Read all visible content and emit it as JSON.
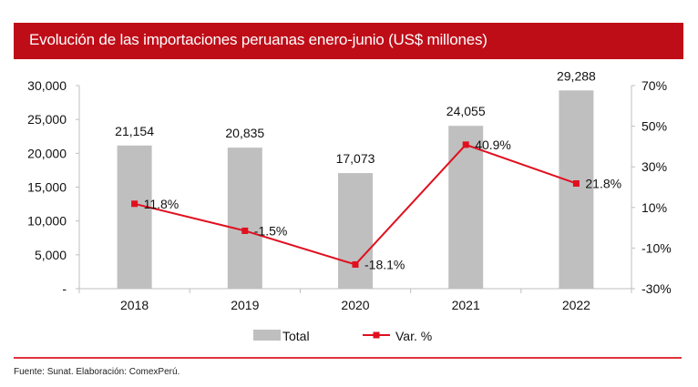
{
  "header": {
    "title": "Evolución de las importaciones peruanas enero-junio (US$ millones)"
  },
  "footer": {
    "source": "Fuente: Sunat. Elaboración: ComexPerú."
  },
  "chart_data": {
    "type": "bar+line",
    "title": "Evolución de las importaciones peruanas enero-junio (US$ millones)",
    "categories": [
      "2018",
      "2019",
      "2020",
      "2021",
      "2022"
    ],
    "series": [
      {
        "name": "Total",
        "type": "bar",
        "axis": "left",
        "values": [
          21154,
          20835,
          17073,
          24055,
          29288
        ],
        "labels": [
          "21,154",
          "20,835",
          "17,073",
          "24,055",
          "29,288"
        ],
        "color": "#bfbfbf"
      },
      {
        "name": "Var. %",
        "type": "line",
        "axis": "right",
        "values": [
          11.8,
          -1.5,
          -18.1,
          40.9,
          21.8
        ],
        "labels": [
          "11.8%",
          "-1.5%",
          "-18.1%",
          "40.9%",
          "21.8%"
        ],
        "color": "#e0101f"
      }
    ],
    "y_left": {
      "min": 0,
      "max": 30000,
      "ticks": [
        "-",
        "5,000",
        "10,000",
        "15,000",
        "20,000",
        "25,000",
        "30,000"
      ]
    },
    "y_right": {
      "min": -30,
      "max": 70,
      "ticks": [
        "-30%",
        "-10%",
        "10%",
        "30%",
        "50%",
        "70%"
      ]
    },
    "legend": {
      "position": "bottom",
      "items": [
        "Total",
        "Var. %"
      ]
    },
    "grid": false
  }
}
